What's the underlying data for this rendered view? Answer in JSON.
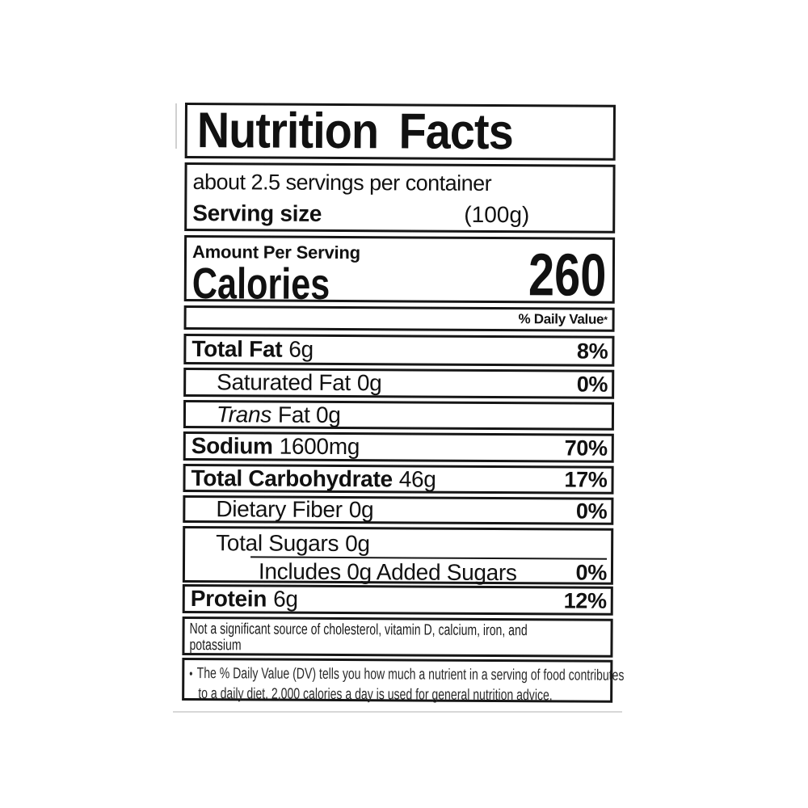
{
  "label": {
    "title": "Nutrition Facts",
    "servings_per_container": "about 2.5 servings per container",
    "serving_size": {
      "label": "Serving size",
      "value": "(100g)"
    },
    "amount_per_serving": "Amount Per Serving",
    "calories": {
      "label": "Calories",
      "value": "260"
    },
    "daily_value_header": {
      "text": "% Daily Value",
      "mark": "*"
    },
    "nutrients": [
      {
        "name": "Total Fat",
        "amount": "6g",
        "daily_value": "8%"
      },
      {
        "name": "Saturated Fat",
        "amount": "0g",
        "daily_value": "0%"
      },
      {
        "name": "Trans",
        "amount": "Fat 0g",
        "daily_value": ""
      },
      {
        "name": "Sodium",
        "amount": "1600mg",
        "daily_value": "70%"
      },
      {
        "name": "Total Carbohydrate",
        "amount": "46g",
        "daily_value": "17%"
      },
      {
        "name": "Dietary Fiber",
        "amount": "0g",
        "daily_value": "0%"
      },
      {
        "name": "Total Sugars",
        "amount": "0g",
        "daily_value": ""
      },
      {
        "name": "Includes 0g Added Sugars",
        "amount": "",
        "daily_value": "0%"
      },
      {
        "name": "Protein",
        "amount": "6g",
        "daily_value": "12%"
      }
    ],
    "not_significant_note": {
      "line1": "Not a significant source of cholesterol, vitamin D, calcium, iron, and",
      "line2": "potassium"
    },
    "footnote": {
      "marker": "•",
      "line1": "The % Daily Value (DV) tells you how much a nutrient in a serving of food contributes",
      "line2": "to a daily diet. 2,000 calories a day is used for general nutrition advice."
    },
    "colors": {
      "border": "#161616",
      "text": "#111111",
      "background": "#ffffff"
    }
  }
}
